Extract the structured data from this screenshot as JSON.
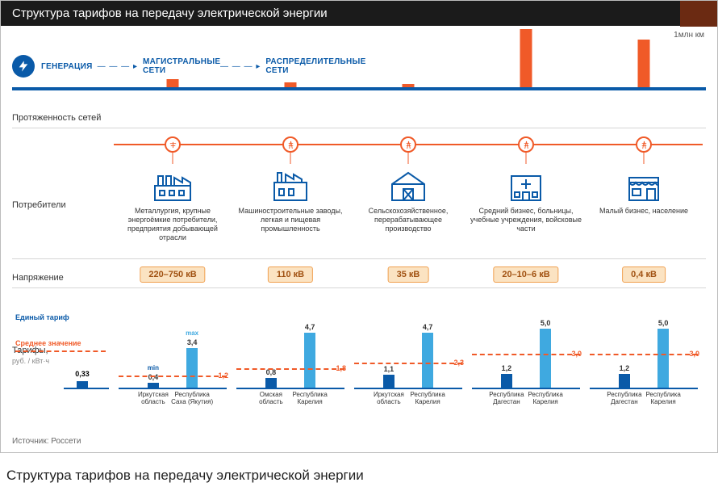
{
  "title": "Структура тарифов на передачу электрической энергии",
  "caption": "Структура тарифов на передачу электрической энергии",
  "yaxis_label": "1млн км",
  "source": "Источник: Россети",
  "colors": {
    "blue": "#0a5aa8",
    "lightblue": "#3fa9e0",
    "orange": "#f05a28",
    "badge_bg": "#fbe3c2",
    "badge_border": "#f0a050",
    "badge_text": "#a05010",
    "rule": "#d6d6d6"
  },
  "stages": {
    "gen": "ГЕНЕРАЦИЯ",
    "trunk": "МАГИСТРАЛЬНЫЕ СЕТИ",
    "dist": "РАСПРЕДЕЛИТЕЛЬНЫЕ СЕТИ"
  },
  "row_labels": {
    "extent": "Протяженность сетей",
    "consumers": "Потребители",
    "voltage": "Напряжение",
    "tariffs": "Тарифы,",
    "tariffs_unit": "руб. / кВт·ч"
  },
  "single_tariff": {
    "label": "Единый тариф",
    "avg_label": "Среднее значение",
    "value": "0,33"
  },
  "legend": {
    "min": "min",
    "max": "max"
  },
  "extent_scale_max": 100,
  "tariff_scale_max": 5.5,
  "columns": [
    {
      "extent_height": 14,
      "node_icon": "tower",
      "icon": "factory",
      "consumer": "Металлургия, крупные энергоёмкие потребители, предприятия добывающей отрасли",
      "voltage": "220–750 кВ",
      "tariff": {
        "min_val": "0,4",
        "max_val": "3,4",
        "min_h": 0.4,
        "max_h": 3.4,
        "avg": 1.2,
        "avg_txt": "1,2",
        "min_region": "Иркутская область",
        "max_region": "Республика Саха (Якутия)",
        "show_minmax_labels": true
      }
    },
    {
      "extent_height": 9,
      "node_icon": "pylon",
      "icon": "plant",
      "consumer": "Машиностроительные заводы, легкая и пищевая промышленность",
      "voltage": "110 кВ",
      "tariff": {
        "min_val": "0,8",
        "max_val": "4,7",
        "min_h": 0.8,
        "max_h": 4.7,
        "avg": 1.8,
        "avg_txt": "1,8",
        "min_region": "Омская область",
        "max_region": "Республика Карелия"
      }
    },
    {
      "extent_height": 6,
      "node_icon": "pylon",
      "icon": "barn",
      "consumer": "Сельскохозяйственное, перерабатывающее производство",
      "voltage": "35 кВ",
      "tariff": {
        "min_val": "1,1",
        "max_val": "4,7",
        "min_h": 1.1,
        "max_h": 4.7,
        "avg": 2.3,
        "avg_txt": "2,3",
        "min_region": "Иркутская область",
        "max_region": "Республика Карелия"
      }
    },
    {
      "extent_height": 100,
      "node_icon": "pylon",
      "icon": "hospital",
      "consumer": "Средний бизнес, больницы, учебные учреждения, войсковые части",
      "voltage": "20–10–6 кВ",
      "tariff": {
        "min_val": "1,2",
        "max_val": "5,0",
        "min_h": 1.2,
        "max_h": 5.0,
        "avg": 3.0,
        "avg_txt": "3,0",
        "min_region": "Республика Дагестан",
        "max_region": "Республика Карелия"
      }
    },
    {
      "extent_height": 82,
      "node_icon": "pylon",
      "icon": "shop",
      "consumer": "Малый бизнес, население",
      "voltage": "0,4 кВ",
      "tariff": {
        "min_val": "1,2",
        "max_val": "5,0",
        "min_h": 1.2,
        "max_h": 5.0,
        "avg": 3.0,
        "avg_txt": "3,0",
        "min_region": "Республика Дагестан",
        "max_region": "Республика Карелия"
      }
    }
  ]
}
